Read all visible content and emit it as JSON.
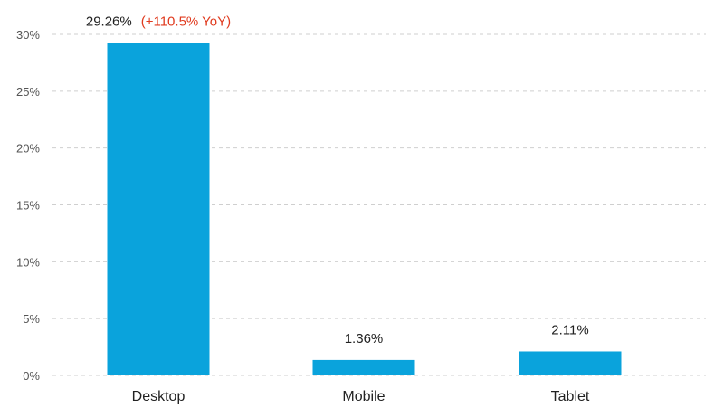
{
  "chart_data": {
    "type": "bar",
    "categories": [
      "Desktop",
      "Mobile",
      "Tablet"
    ],
    "values": [
      29.26,
      1.36,
      2.11
    ],
    "value_labels": [
      "29.26%",
      "1.36%",
      "2.11%"
    ],
    "annotations": [
      {
        "category": "Desktop",
        "text": "(+110.5% YoY)",
        "color": "#e03a1e"
      }
    ],
    "title": "",
    "xlabel": "",
    "ylabel": "",
    "ylim": [
      0,
      30
    ],
    "yticks": [
      0,
      5,
      10,
      15,
      20,
      25,
      30
    ],
    "ytick_labels": [
      "0%",
      "5%",
      "10%",
      "15%",
      "20%",
      "25%",
      "30%"
    ],
    "grid": true,
    "colors": {
      "bar": "#0aa3dc",
      "grid": "#cfcfcf"
    }
  }
}
